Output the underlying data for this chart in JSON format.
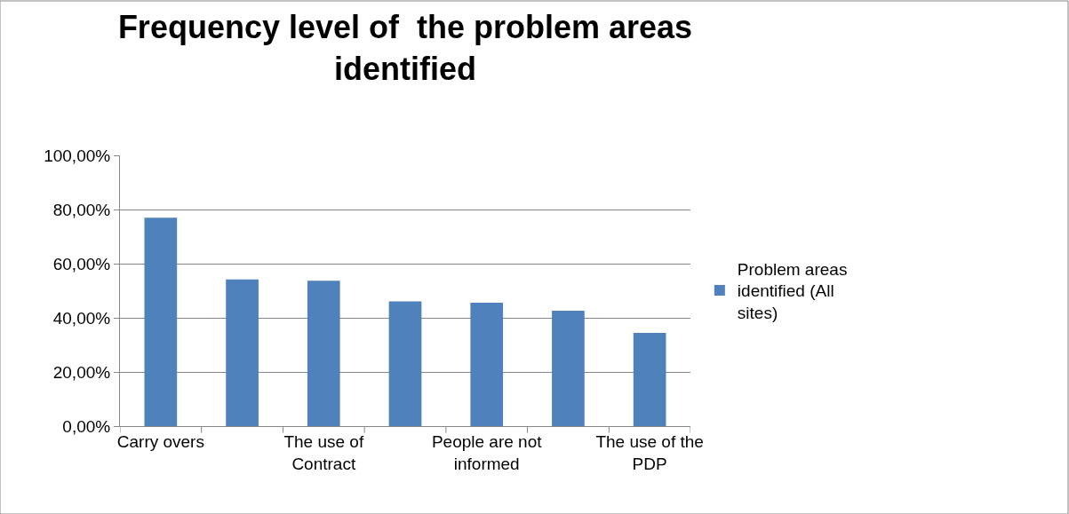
{
  "chart_data": {
    "type": "bar",
    "title": "Frequency level of  the problem areas identified",
    "categories": [
      "Carry overs",
      null,
      "The use of Contract",
      null,
      "People are not informed",
      null,
      "The use of the PDP"
    ],
    "series": [
      {
        "name": "Problem areas identified (All sites)",
        "color": "#4f81bd",
        "values": [
          77.0,
          54.2,
          53.7,
          46.1,
          45.6,
          42.6,
          34.4
        ]
      }
    ],
    "ylim": [
      0,
      100
    ],
    "yticks": [
      {
        "value": 0,
        "label": "0,00%"
      },
      {
        "value": 20,
        "label": "20,00%"
      },
      {
        "value": 40,
        "label": "40,00%"
      },
      {
        "value": 60,
        "label": "60,00%"
      },
      {
        "value": 80,
        "label": "80,00%"
      },
      {
        "value": 100,
        "label": "100,00%"
      }
    ],
    "grid": "y",
    "legend": "right"
  }
}
